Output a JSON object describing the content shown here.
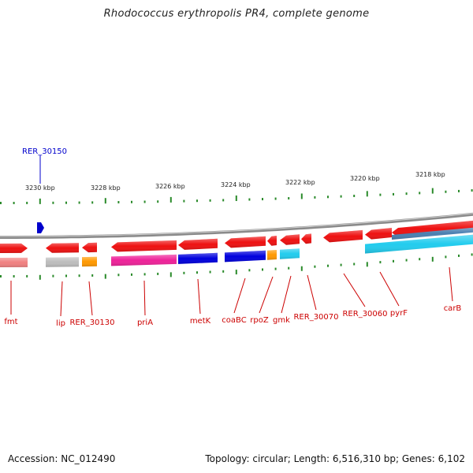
{
  "title": "Rhodococcus erythropolis PR4, complete genome",
  "accession": "Accession: NC_012490",
  "summary": "Topology: circular; Length: 6,516,310 bp; Genes: 6,102",
  "colors": {
    "backbone": "#8a8a8a",
    "tick": "#2a8a2a",
    "red": "#ee1111",
    "red_light": "#f08080",
    "grey": "#bdbdbd",
    "orange": "#ff9900",
    "magenta": "#ee2299",
    "blue": "#0000dd",
    "cyan": "#22ccee",
    "steel": "#4a7fb0",
    "label_red": "#cc0000",
    "label_blue": "#0000cc"
  },
  "scale_labels": [
    "3230 kbp",
    "3228 kbp",
    "3226 kbp",
    "3224 kbp",
    "3222 kbp",
    "3220 kbp",
    "3218 kbp"
  ],
  "marker": {
    "label": "RER_30150"
  },
  "gene_labels": [
    "fmt",
    "lip",
    "RER_30130",
    "priA",
    "metK",
    "coaBC",
    "rpoZ",
    "gmk",
    "RER_30070",
    "RER_30060",
    "pyrF",
    "carB"
  ]
}
